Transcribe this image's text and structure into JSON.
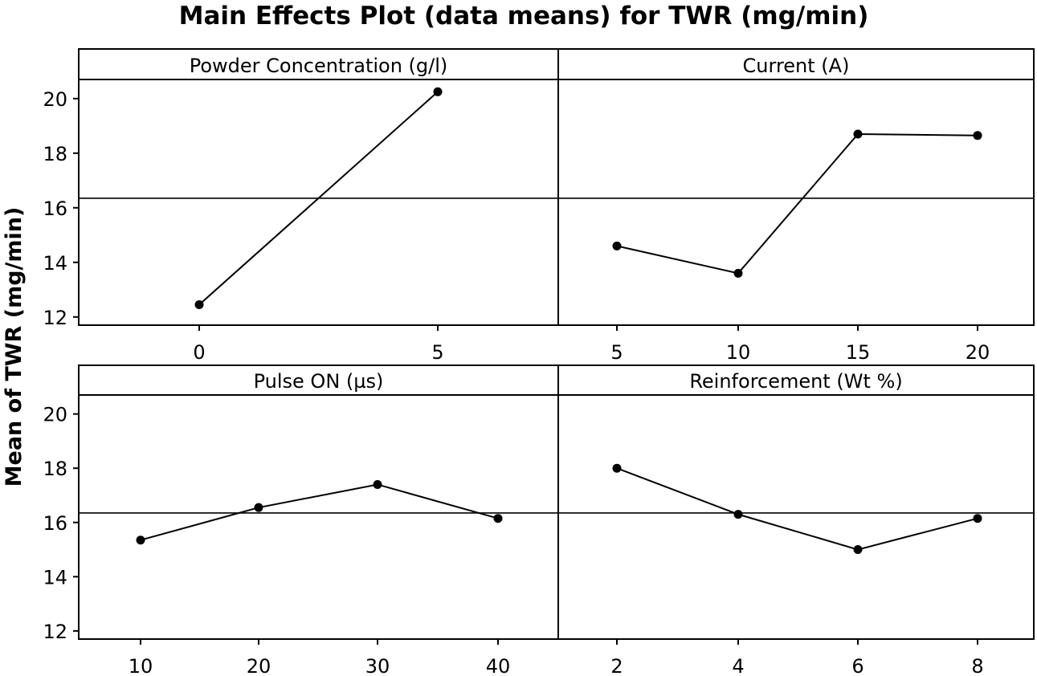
{
  "chart_data": {
    "type": "line",
    "title": "Main Effects Plot (data means) for TWR (mg/min)",
    "ylabel": "Mean of TWR (mg/min)",
    "ylim": [
      11.7,
      20.7
    ],
    "yticks": [
      12,
      14,
      16,
      18,
      20
    ],
    "grand_mean": 16.35,
    "colors": {
      "line": "#000000",
      "background": "#ffffff"
    },
    "panels": [
      {
        "factor": "Powder Concentration (g/l)",
        "x": [
          0,
          5
        ],
        "x_labels": [
          "0",
          "5"
        ],
        "values": [
          12.45,
          20.25
        ]
      },
      {
        "factor": "Current (A)",
        "x": [
          5,
          10,
          15,
          20
        ],
        "x_labels": [
          "5",
          "10",
          "15",
          "20"
        ],
        "values": [
          14.6,
          13.6,
          18.7,
          18.65
        ]
      },
      {
        "factor": "Pulse ON (µs)",
        "x": [
          10,
          20,
          30,
          40
        ],
        "x_labels": [
          "10",
          "20",
          "30",
          "40"
        ],
        "values": [
          15.35,
          16.55,
          17.4,
          16.15
        ]
      },
      {
        "factor": "Reinforcement (Wt %)",
        "x": [
          2,
          4,
          6,
          8
        ],
        "x_labels": [
          "2",
          "4",
          "6",
          "8"
        ],
        "values": [
          18.0,
          16.3,
          15.0,
          16.15
        ]
      }
    ]
  }
}
